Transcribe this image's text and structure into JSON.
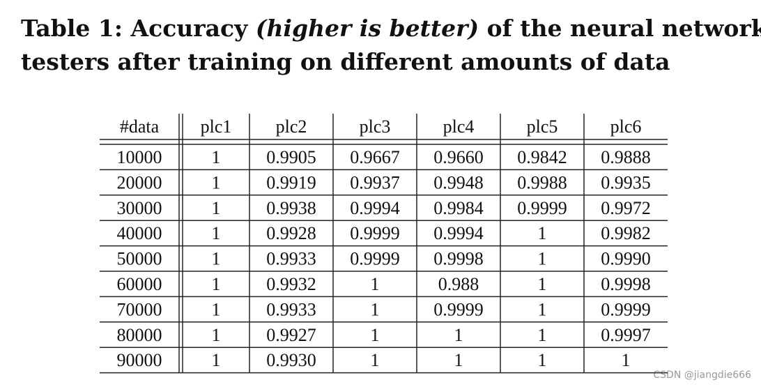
{
  "title": {
    "label": "Table 1: Accuracy",
    "emphasis": "(higher is better)",
    "line1_rest": "of the neural network at-",
    "line2": "testers after training on different amounts of data"
  },
  "table": {
    "header": [
      "#data",
      "plc1",
      "plc2",
      "plc3",
      "plc4",
      "plc5",
      "plc6"
    ],
    "rows": [
      [
        "10000",
        "1",
        "0.9905",
        "0.9667",
        "0.9660",
        "0.9842",
        "0.9888"
      ],
      [
        "20000",
        "1",
        "0.9919",
        "0.9937",
        "0.9948",
        "0.9988",
        "0.9935"
      ],
      [
        "30000",
        "1",
        "0.9938",
        "0.9994",
        "0.9984",
        "0.9999",
        "0.9972"
      ],
      [
        "40000",
        "1",
        "0.9928",
        "0.9999",
        "0.9994",
        "1",
        "0.9982"
      ],
      [
        "50000",
        "1",
        "0.9933",
        "0.9999",
        "0.9998",
        "1",
        "0.9990"
      ],
      [
        "60000",
        "1",
        "0.9932",
        "1",
        "0.988",
        "1",
        "0.9998"
      ],
      [
        "70000",
        "1",
        "0.9933",
        "1",
        "0.9999",
        "1",
        "0.9999"
      ],
      [
        "80000",
        "1",
        "0.9927",
        "1",
        "1",
        "1",
        "0.9997"
      ],
      [
        "90000",
        "1",
        "0.9930",
        "1",
        "1",
        "1",
        "1"
      ]
    ]
  },
  "watermark": "CSDN @jiangdie666"
}
